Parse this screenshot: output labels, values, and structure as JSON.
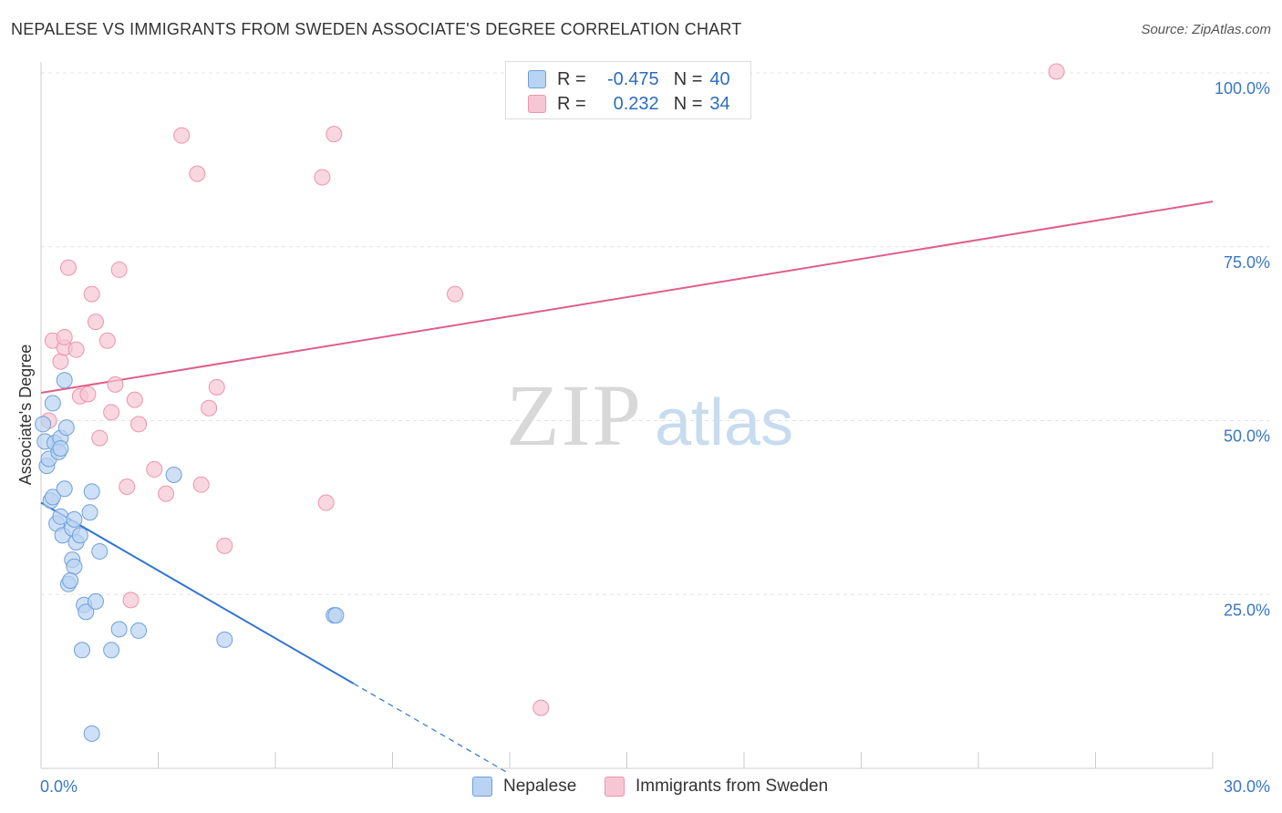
{
  "title": "NEPALESE VS IMMIGRANTS FROM SWEDEN ASSOCIATE'S DEGREE CORRELATION CHART",
  "source": "Source: ZipAtlas.com",
  "colors": {
    "blue_fill": "#b9d3f2",
    "blue_stroke": "#6f9fdc",
    "blue_line": "#2f74d0",
    "pink_fill": "#f7c6d4",
    "pink_stroke": "#ec94ae",
    "pink_line": "#e05e88",
    "axis_label": "#3a76c8",
    "grid": "#e4e4e4"
  },
  "legend_top": {
    "series": [
      {
        "r_label": "R =",
        "r_value": "-0.475",
        "n_label": "N =",
        "n_value": "40"
      },
      {
        "r_label": "R =",
        "r_value": "0.232",
        "n_label": "N =",
        "n_value": "34"
      }
    ]
  },
  "legend_bottom": [
    "Nepalese",
    "Immigrants from Sweden"
  ],
  "watermark": {
    "zip": "ZIP",
    "atlas": "atlas"
  },
  "chart_data": {
    "type": "scatter",
    "title": "NEPALESE VS IMMIGRANTS FROM SWEDEN ASSOCIATE'S DEGREE CORRELATION CHART",
    "xlabel": "",
    "ylabel": "Associate's Degree",
    "xlim": [
      0,
      30
    ],
    "ylim": [
      0,
      102
    ],
    "x_tick_labels": [
      {
        "value": 0,
        "label": "0.0%"
      },
      {
        "value": 30,
        "label": "30.0%"
      }
    ],
    "y_tick_labels": [
      {
        "value": 25,
        "label": "25.0%"
      },
      {
        "value": 50,
        "label": "50.0%"
      },
      {
        "value": 75,
        "label": "75.0%"
      },
      {
        "value": 100,
        "label": "100.0%"
      }
    ],
    "series": [
      {
        "name": "Nepalese",
        "points": [
          [
            0.1,
            47.0
          ],
          [
            0.15,
            43.5
          ],
          [
            0.2,
            44.5
          ],
          [
            0.25,
            38.5
          ],
          [
            0.3,
            39.0
          ],
          [
            0.35,
            46.8
          ],
          [
            0.3,
            52.5
          ],
          [
            0.5,
            47.5
          ],
          [
            0.45,
            45.5
          ],
          [
            0.5,
            46.0
          ],
          [
            0.6,
            55.8
          ],
          [
            0.65,
            49.0
          ],
          [
            0.6,
            40.2
          ],
          [
            0.4,
            35.2
          ],
          [
            0.5,
            36.2
          ],
          [
            0.55,
            33.5
          ],
          [
            0.8,
            34.5
          ],
          [
            0.85,
            35.8
          ],
          [
            0.9,
            32.5
          ],
          [
            1.0,
            33.5
          ],
          [
            0.8,
            30.0
          ],
          [
            0.85,
            29.0
          ],
          [
            0.7,
            26.5
          ],
          [
            0.75,
            27.0
          ],
          [
            1.25,
            36.8
          ],
          [
            1.3,
            39.8
          ],
          [
            1.5,
            31.2
          ],
          [
            1.1,
            23.5
          ],
          [
            1.15,
            22.5
          ],
          [
            1.4,
            24.0
          ],
          [
            2.0,
            20.0
          ],
          [
            2.5,
            19.8
          ],
          [
            1.05,
            17.0
          ],
          [
            1.8,
            17.0
          ],
          [
            3.4,
            42.2
          ],
          [
            4.7,
            18.5
          ],
          [
            7.5,
            22.0
          ],
          [
            7.55,
            22.0
          ],
          [
            1.3,
            5.0
          ],
          [
            0.05,
            49.5
          ]
        ]
      },
      {
        "name": "Immigrants from Sweden",
        "points": [
          [
            0.3,
            61.5
          ],
          [
            0.5,
            58.5
          ],
          [
            0.6,
            60.5
          ],
          [
            0.9,
            60.2
          ],
          [
            0.7,
            72.0
          ],
          [
            1.3,
            68.2
          ],
          [
            1.4,
            64.2
          ],
          [
            1.7,
            61.5
          ],
          [
            2.0,
            71.7
          ],
          [
            1.0,
            53.5
          ],
          [
            1.2,
            53.8
          ],
          [
            1.9,
            55.2
          ],
          [
            1.8,
            51.2
          ],
          [
            2.4,
            53.0
          ],
          [
            2.5,
            49.5
          ],
          [
            1.5,
            47.5
          ],
          [
            2.2,
            40.5
          ],
          [
            2.9,
            43.0
          ],
          [
            3.2,
            39.5
          ],
          [
            4.1,
            40.8
          ],
          [
            4.3,
            51.8
          ],
          [
            4.5,
            54.8
          ],
          [
            4.7,
            32.0
          ],
          [
            3.6,
            91.0
          ],
          [
            4.0,
            85.5
          ],
          [
            7.2,
            85.0
          ],
          [
            7.5,
            91.2
          ],
          [
            10.6,
            68.2
          ],
          [
            7.3,
            38.2
          ],
          [
            2.3,
            24.2
          ],
          [
            12.8,
            8.7
          ],
          [
            26.0,
            100.2
          ],
          [
            0.2,
            50.0
          ],
          [
            0.6,
            62.0
          ]
        ]
      }
    ],
    "trend_lines": [
      {
        "series": "Nepalese",
        "x_start": 0,
        "y_start": 38.2,
        "x_end": 8.0,
        "y_end": 12.2,
        "dashed_to_x": 12.0,
        "dashed_to_y": -0.8
      },
      {
        "series": "Immigrants from Sweden",
        "x_start": 0,
        "y_start": 54.0,
        "x_end": 30.0,
        "y_end": 81.5
      }
    ],
    "grid": true
  }
}
